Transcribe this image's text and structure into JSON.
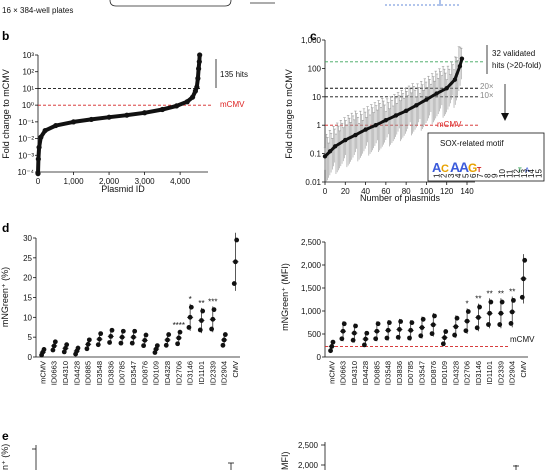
{
  "header": {
    "plates_note": "16 × 384-well plates"
  },
  "panel_b": {
    "label": "b",
    "chart_data": {
      "type": "scatter",
      "xlabel": "Plasmid ID",
      "ylabel": "Fold change to mCMV",
      "x_ticks": [
        "0",
        "1,000",
        "2,000",
        "3,000",
        "4,000"
      ],
      "y_ticks": [
        "10⁻⁴",
        "10⁻³",
        "10⁻²",
        "10⁻¹",
        "10⁰",
        "10¹",
        "10²",
        "10³"
      ],
      "xlim": [
        0,
        4700
      ],
      "ylim_log10": [
        -4,
        3
      ],
      "mCMV_label": "mCMV",
      "hits_label": "135 hits",
      "threshold": 10,
      "mCMV_level": 1,
      "curve": [
        [
          0,
          8e-05
        ],
        [
          10,
          0.0006
        ],
        [
          30,
          0.003
        ],
        [
          80,
          0.012
        ],
        [
          200,
          0.03
        ],
        [
          500,
          0.06
        ],
        [
          1000,
          0.1
        ],
        [
          1500,
          0.14
        ],
        [
          2000,
          0.19
        ],
        [
          2500,
          0.25
        ],
        [
          3000,
          0.35
        ],
        [
          3500,
          0.55
        ],
        [
          3900,
          0.9
        ],
        [
          4200,
          1.6
        ],
        [
          4350,
          3
        ],
        [
          4430,
          7
        ],
        [
          4470,
          12
        ],
        [
          4500,
          40
        ],
        [
          4520,
          150
        ],
        [
          4540,
          400
        ],
        [
          4550,
          1000
        ]
      ]
    }
  },
  "panel_c": {
    "label": "c",
    "chart_data": {
      "type": "scatter",
      "xlabel": "Number of plasmids",
      "ylabel": "Fold change to mCMV",
      "x_ticks": [
        "0",
        "20",
        "40",
        "60",
        "80",
        "100",
        "120",
        "140"
      ],
      "y_ticks": [
        "0.01",
        "0.1",
        "1",
        "10",
        "100",
        "1,000"
      ],
      "xlim": [
        0,
        140
      ],
      "ylim_log10": [
        -2,
        3
      ],
      "validated_label": "32 validated hits (>20-fold)",
      "validated_line_1": "32 validated",
      "validated_line_2": "hits (>20-fold)",
      "line_20x": "20×",
      "line_10x": "10×",
      "mCMV_label": "mCMV",
      "motif_title": "SOX-related motif",
      "green_line": 170,
      "mCMV_level": 1,
      "curve": [
        [
          0,
          0.08
        ],
        [
          5,
          0.12
        ],
        [
          10,
          0.18
        ],
        [
          20,
          0.3
        ],
        [
          30,
          0.45
        ],
        [
          40,
          0.7
        ],
        [
          50,
          1.0
        ],
        [
          60,
          1.5
        ],
        [
          70,
          2.2
        ],
        [
          80,
          3.2
        ],
        [
          90,
          5
        ],
        [
          100,
          8
        ],
        [
          110,
          13
        ],
        [
          120,
          20
        ],
        [
          128,
          40
        ],
        [
          133,
          120
        ],
        [
          135,
          220
        ]
      ]
    }
  },
  "panel_d": {
    "label": "d",
    "left": {
      "ylabel": "mNGreen⁺ (%)",
      "y_ticks": [
        "0",
        "5",
        "10",
        "15",
        "20",
        "25",
        "30"
      ],
      "ylim": [
        0,
        30
      ],
      "chart_data": {
        "type": "scatter",
        "categories": [
          "mCMV",
          "ID0663",
          "ID4310",
          "ID4428",
          "ID0885",
          "ID3548",
          "ID3836",
          "ID0785",
          "ID3547",
          "ID0876",
          "ID0109",
          "ID4328",
          "ID2706",
          "ID3146",
          "ID1101",
          "ID2339",
          "ID2904",
          "CMV"
        ],
        "values": [
          1.2,
          2.8,
          2.2,
          1.5,
          3.2,
          4.5,
          5.2,
          5.0,
          5.0,
          4.2,
          2.0,
          4.3,
          4.8,
          10.0,
          9.2,
          9.5,
          4.3,
          24.0
        ],
        "significance": [
          "",
          "",
          "",
          "",
          "",
          "",
          "",
          "",
          "",
          "",
          "",
          "",
          "****",
          "*",
          "**",
          "***",
          "",
          ""
        ]
      }
    },
    "right": {
      "ylabel": "mNGreen⁺ (MFI)",
      "y_ticks": [
        "0",
        "500",
        "1,000",
        "1,500",
        "2,000",
        "2,500"
      ],
      "ylim": [
        0,
        2500
      ],
      "mCMV_label": "mCMV",
      "chart_data": {
        "type": "scatter",
        "categories": [
          "mCMV",
          "ID0663",
          "ID4310",
          "ID4428",
          "ID0885",
          "ID3548",
          "ID3836",
          "ID0785",
          "ID3547",
          "ID0876",
          "ID0109",
          "ID4328",
          "ID2706",
          "ID3146",
          "ID1101",
          "ID2339",
          "ID2904",
          "CMV"
        ],
        "values": [
          230,
          560,
          520,
          390,
          560,
          580,
          600,
          580,
          640,
          700,
          420,
          660,
          780,
          860,
          950,
          950,
          980,
          1700
        ],
        "significance": [
          "",
          "",
          "",
          "",
          "",
          "",
          "",
          "",
          "",
          "",
          "",
          "",
          "*",
          "**",
          "**",
          "**",
          "**",
          ""
        ],
        "mCMV_level": 230
      }
    }
  },
  "panel_e": {
    "label": "e",
    "left": {
      "ylabel_fragment": "n⁺ (%)"
    },
    "right": {
      "ylabel_fragment": "MFI)",
      "y_ticks": [
        "2,000",
        "2,500"
      ]
    }
  },
  "colors": {
    "red_line": "#d22222",
    "green_line": "#3aa35a",
    "black": "#111111",
    "grey": "#888888"
  }
}
